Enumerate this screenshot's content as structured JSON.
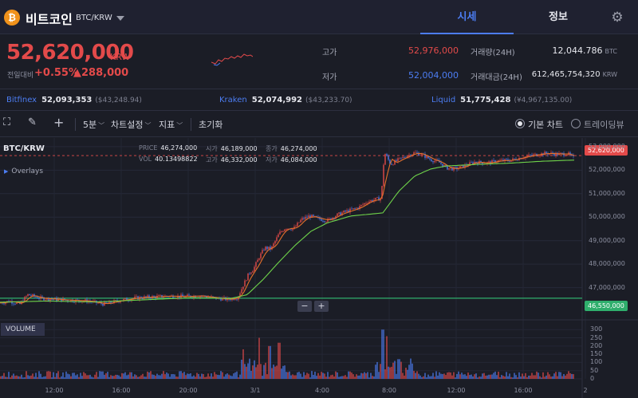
{
  "header": {
    "coin_icon": "bitcoin-icon",
    "coin_symbol": "₿",
    "coin_name": "비트코인",
    "pair": "BTC/KRW",
    "tabs": [
      {
        "label": "시세",
        "active": true
      },
      {
        "label": "정보",
        "active": false
      }
    ]
  },
  "summary": {
    "price": "52,620,000",
    "unit": "KRW",
    "prev_label": "전일대비",
    "change_pct": "+0.55%",
    "change_amt": "▲288,000",
    "high_label": "고가",
    "high": "52,976,000",
    "low_label": "저가",
    "low": "52,004,000",
    "volume_label": "거래량(24H)",
    "volume": "12,044.786",
    "volume_unit": "BTC",
    "turnover_label": "거래대금(24H)",
    "turnover": "612,465,754,320",
    "turnover_unit": "KRW"
  },
  "exchanges": [
    {
      "name": "Bitfinex",
      "value": "52,093,353",
      "usd": "($43,248.94)"
    },
    {
      "name": "Kraken",
      "value": "52,074,992",
      "usd": "($43,233.70)"
    },
    {
      "name": "Liquid",
      "value": "51,775,428",
      "usd": "(¥4,967,135.00)"
    }
  ],
  "toolbar": {
    "interval": "5분",
    "chart_settings": "차트설정",
    "indicators": "지표",
    "reset": "초기화",
    "basic_chart": "기본 차트",
    "tradingview": "트레이딩뷰"
  },
  "chart_header": {
    "pair": "BTC/KRW",
    "overlays": "Overlays",
    "price_label": "PRICE",
    "price": "46,274,000",
    "open_label": "시가",
    "open": "46,189,000",
    "close_label": "종가",
    "close": "46,274,000",
    "vol_label": "VOL",
    "vol": "40.13498822",
    "high_label": "고가",
    "high": "46,332,000",
    "low_label": "저가",
    "low": "46,084,000",
    "volume_tag": "VOLUME",
    "current_price_tag": "52,620,000",
    "line_price_tag": "46,550,000"
  },
  "colors": {
    "up": "#e34a4a",
    "down": "#4c7df2",
    "ma_short": "#e5702a",
    "ma_long": "#6fd44a",
    "hline": "#2fae6c"
  },
  "chart_data": {
    "type": "line",
    "price_axis": {
      "ticks": [
        "53,000,000",
        "52,000,000",
        "51,000,000",
        "50,000,000",
        "49,000,000",
        "48,000,000",
        "47,000,000"
      ],
      "range": [
        45900000,
        53200000
      ]
    },
    "volume_axis": {
      "ticks": [
        "300",
        "250",
        "200",
        "150",
        "100",
        "50",
        "0"
      ],
      "range": [
        0,
        340
      ]
    },
    "time_ticks": [
      "12:00",
      "16:00",
      "20:00",
      "3/1",
      "4:00",
      "8:00",
      "12:00",
      "16:00",
      "2"
    ],
    "price_path": [
      [
        0,
        46350000
      ],
      [
        12,
        46420000
      ],
      [
        25,
        46300000
      ],
      [
        35,
        46700000
      ],
      [
        50,
        46550000
      ],
      [
        70,
        46500000
      ],
      [
        90,
        46460000
      ],
      [
        110,
        46430000
      ],
      [
        130,
        46300000
      ],
      [
        150,
        46450000
      ],
      [
        170,
        46560000
      ],
      [
        190,
        46600000
      ],
      [
        210,
        46640000
      ],
      [
        230,
        46620000
      ],
      [
        250,
        46650000
      ],
      [
        270,
        46560000
      ],
      [
        285,
        46500000
      ],
      [
        298,
        46580000
      ],
      [
        305,
        47100000
      ],
      [
        312,
        47600000
      ],
      [
        318,
        47800000
      ],
      [
        325,
        48300000
      ],
      [
        332,
        48700000
      ],
      [
        340,
        48650000
      ],
      [
        350,
        49300000
      ],
      [
        358,
        49550000
      ],
      [
        368,
        49500000
      ],
      [
        378,
        49900000
      ],
      [
        388,
        50050000
      ],
      [
        398,
        49950000
      ],
      [
        410,
        49850000
      ],
      [
        420,
        50050000
      ],
      [
        430,
        50200000
      ],
      [
        440,
        50300000
      ],
      [
        450,
        50420000
      ],
      [
        460,
        50650000
      ],
      [
        470,
        50750000
      ],
      [
        478,
        50800000
      ],
      [
        482,
        52750000
      ],
      [
        490,
        52250000
      ],
      [
        500,
        52450000
      ],
      [
        510,
        52600000
      ],
      [
        520,
        52750000
      ],
      [
        530,
        52650000
      ],
      [
        540,
        52450000
      ],
      [
        550,
        52350000
      ],
      [
        560,
        52100000
      ],
      [
        570,
        52050000
      ],
      [
        580,
        52150000
      ],
      [
        595,
        52350000
      ],
      [
        610,
        52300000
      ],
      [
        625,
        52400000
      ],
      [
        640,
        52420000
      ],
      [
        655,
        52550000
      ],
      [
        670,
        52650000
      ],
      [
        685,
        52720000
      ],
      [
        700,
        52680000
      ],
      [
        712,
        52700000
      ],
      [
        720,
        52500000
      ]
    ],
    "ma_long_path": [
      [
        0,
        46380000
      ],
      [
        60,
        46430000
      ],
      [
        120,
        46390000
      ],
      [
        180,
        46480000
      ],
      [
        240,
        46570000
      ],
      [
        290,
        46540000
      ],
      [
        310,
        46700000
      ],
      [
        330,
        47350000
      ],
      [
        350,
        48100000
      ],
      [
        370,
        48800000
      ],
      [
        390,
        49400000
      ],
      [
        410,
        49750000
      ],
      [
        440,
        50050000
      ],
      [
        480,
        50180000
      ],
      [
        500,
        51100000
      ],
      [
        520,
        51750000
      ],
      [
        540,
        52050000
      ],
      [
        560,
        52180000
      ],
      [
        600,
        52250000
      ],
      [
        640,
        52300000
      ],
      [
        680,
        52380000
      ],
      [
        720,
        52430000
      ]
    ],
    "volume_bars_index_peaks": [
      [
        305,
        180
      ],
      [
        325,
        250
      ],
      [
        338,
        200
      ],
      [
        350,
        220
      ],
      [
        480,
        300
      ],
      [
        485,
        260
      ],
      [
        500,
        120
      ]
    ],
    "horizontal_line": 46550000,
    "dashed_line": 52620000
  }
}
